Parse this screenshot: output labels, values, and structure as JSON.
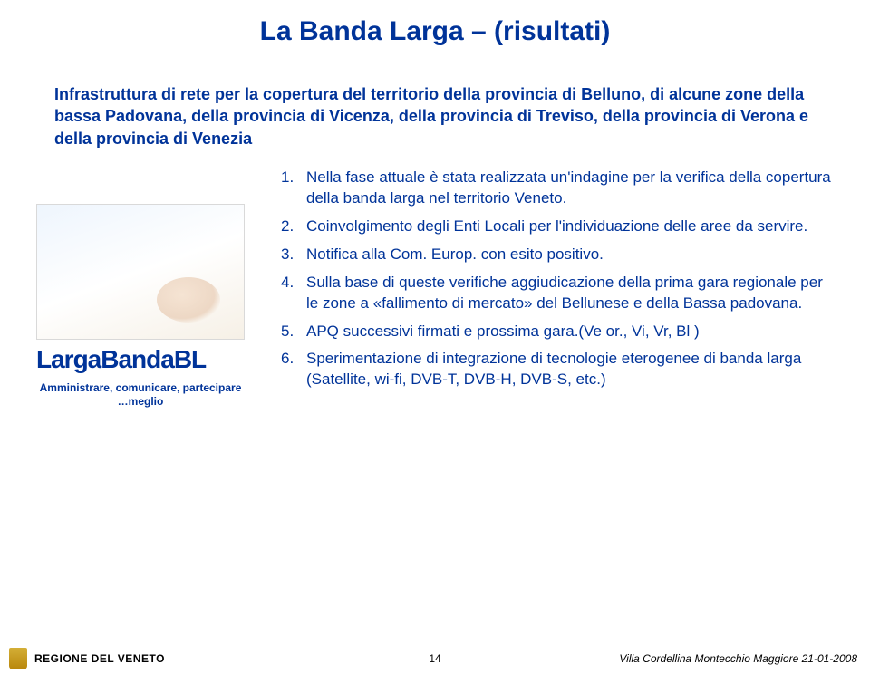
{
  "title": "La Banda Larga – (risultati)",
  "intro": "Infrastruttura di rete per la copertura del territorio della provincia di Belluno, di alcune zone della bassa Padovana, della provincia di Vicenza, della provincia di Treviso, della provincia di Verona e della provincia di Venezia",
  "logo": "LargaBandaBL",
  "caption": "Amministrare, comunicare, partecipare …meglio",
  "items": [
    {
      "n": "1.",
      "t": "Nella fase attuale è stata realizzata un'indagine per la verifica della copertura della banda larga nel territorio Veneto."
    },
    {
      "n": "2.",
      "t": "Coinvolgimento degli Enti Locali per l'individuazione delle aree da servire."
    },
    {
      "n": "3.",
      "t": "Notifica alla Com. Europ. con esito positivo."
    },
    {
      "n": "4.",
      "t": "Sulla base di queste verifiche aggiudicazione della prima gara regionale per le  zone a «fallimento di mercato» del Bellunese e della Bassa padovana."
    },
    {
      "n": "5.",
      "t": "APQ successivi firmati e prossima gara.(Ve or., Vi, Vr, Bl )"
    },
    {
      "n": "6.",
      "t": "Sperimentazione di integrazione di tecnologie eterogenee di banda larga (Satellite, wi-fi, DVB-T, DVB-H, DVB-S, etc.)"
    }
  ],
  "brand": "REGIONE DEL VENETO",
  "page": "14",
  "footer_right": "Villa Cordellina Montecchio Maggiore  21-01-2008",
  "colors": {
    "primary": "#003399",
    "brand": "#1a1a1a"
  }
}
